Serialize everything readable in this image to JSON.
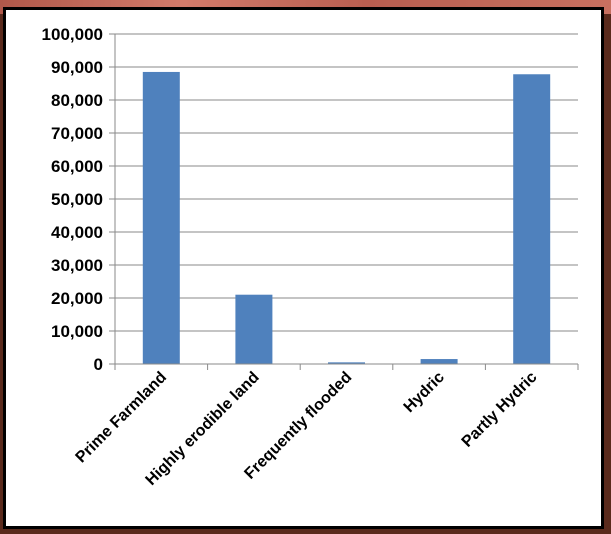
{
  "chart_data": {
    "type": "bar",
    "categories": [
      "Prime Farmland",
      "Highly erodible land",
      "Frequently flooded",
      "Hydric",
      "Partly Hydric"
    ],
    "values": [
      88500,
      21000,
      500,
      1500,
      87800
    ],
    "ylim": [
      0,
      100000
    ],
    "yticks": [
      "0",
      "10,000",
      "20,000",
      "30,000",
      "40,000",
      "50,000",
      "60,000",
      "70,000",
      "80,000",
      "90,000",
      "100,000"
    ],
    "ytick_values": [
      0,
      10000,
      20000,
      30000,
      40000,
      50000,
      60000,
      70000,
      80000,
      90000,
      100000
    ],
    "grid": true,
    "bar_color": "#4f81bd",
    "grid_color": "#8a8a8a"
  }
}
